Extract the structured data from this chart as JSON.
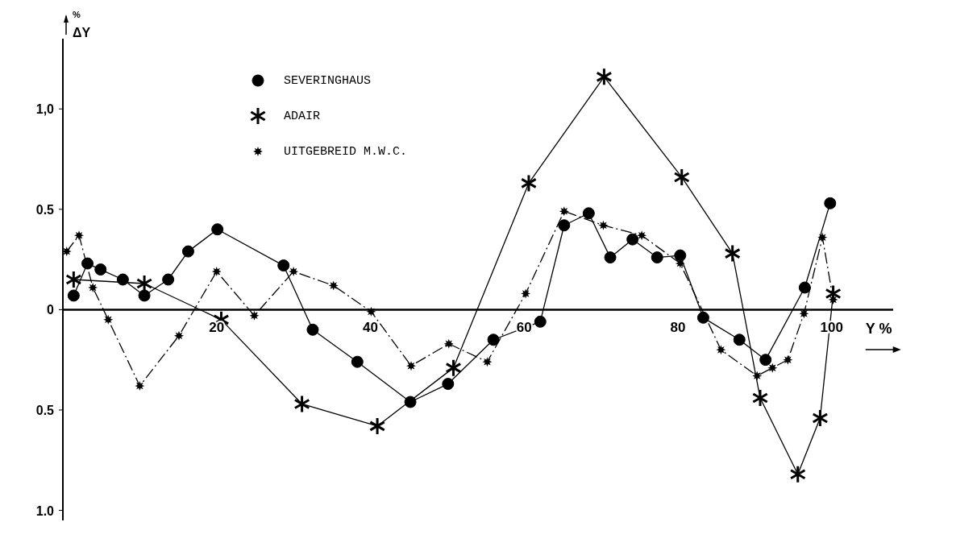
{
  "chart_data": {
    "type": "line",
    "xlabel": "Y %",
    "ylabel": "$^{%}$ΔY",
    "xlim": [
      0,
      108
    ],
    "xticks": [
      20,
      40,
      60,
      80,
      100
    ],
    "ylim": [
      -1.05,
      1.35
    ],
    "yticks": [
      {
        "value": -1,
        "label": "1.0"
      },
      {
        "value": -0.5,
        "label": "0.5"
      },
      0,
      0.5,
      {
        "value": 1,
        "label": "1,0"
      }
    ],
    "legend": "top left",
    "series": [
      {
        "name": "SEVERINGHAUS",
        "color": "#000000",
        "marker": "circle",
        "line_style": "solid",
        "x": [
          1.4,
          3.2,
          4.9,
          7.8,
          10.6,
          13.7,
          16.3,
          20.1,
          28.7,
          32.5,
          38.3,
          45.2,
          50.1,
          56.0,
          62.1,
          65.2,
          68.4,
          71.2,
          74.1,
          77.3,
          80.3,
          83.3,
          88.0,
          91.4,
          96.5,
          99.8
        ],
        "values": [
          0.07,
          0.23,
          0.2,
          0.15,
          0.07,
          0.15,
          0.29,
          0.4,
          0.22,
          -0.1,
          -0.26,
          -0.46,
          -0.37,
          -0.15,
          -0.06,
          0.42,
          0.48,
          0.26,
          0.35,
          0.26,
          0.27,
          -0.04,
          -0.15,
          -0.25,
          0.11,
          0.53
        ]
      },
      {
        "name": "ADAIR",
        "color": "#000000",
        "marker": "cross",
        "line_style": "solid",
        "x": [
          1.4,
          10.6,
          20.6,
          31.1,
          40.9,
          50.8,
          60.6,
          70.4,
          80.5,
          87.1,
          90.7,
          95.6,
          98.5,
          100.2
        ],
        "values": [
          0.15,
          0.13,
          -0.05,
          -0.47,
          -0.58,
          -0.29,
          0.63,
          1.16,
          0.66,
          0.28,
          -0.44,
          -0.82,
          -0.54,
          0.08
        ]
      },
      {
        "name": "UITGEBREID M.W.C.",
        "color": "#000000",
        "marker": "star",
        "line_style": "dashed",
        "x": [
          0.5,
          2.1,
          3.9,
          5.9,
          10.0,
          15.1,
          20.0,
          24.9,
          30.0,
          35.2,
          40.1,
          45.3,
          50.2,
          55.2,
          60.2,
          65.2,
          70.3,
          75.3,
          80.3,
          85.6,
          90.3,
          92.3,
          94.3,
          96.4,
          98.8,
          100.2
        ],
        "values": [
          0.29,
          0.37,
          0.11,
          -0.05,
          -0.38,
          -0.13,
          0.19,
          -0.03,
          0.19,
          0.12,
          -0.01,
          -0.28,
          -0.17,
          -0.26,
          0.08,
          0.49,
          0.42,
          0.37,
          0.23,
          -0.2,
          -0.33,
          -0.29,
          -0.25,
          -0.02,
          0.36,
          0.05
        ]
      }
    ]
  }
}
